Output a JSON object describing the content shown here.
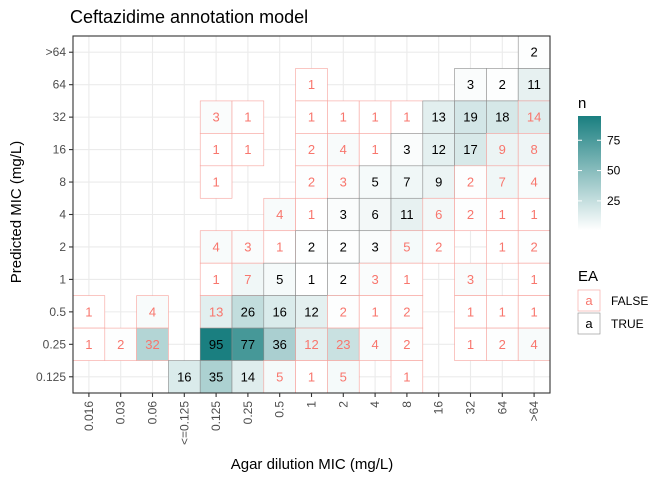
{
  "chart_data": {
    "type": "heatmap",
    "title": "Ceftazidime annotation model",
    "xlabel": "Agar dilution MIC (mg/L)",
    "ylabel": "Predicted MIC (mg/L)",
    "x_categories": [
      "0.016",
      "0.03",
      "0.06",
      "<=0.125",
      "0.125",
      "0.25",
      "0.5",
      "1",
      "2",
      "4",
      "8",
      "16",
      "32",
      "64",
      ">64"
    ],
    "y_categories": [
      "0.125",
      "0.25",
      "0.5",
      "1",
      "2",
      "4",
      "8",
      "16",
      "32",
      "64",
      ">64"
    ],
    "cells": [
      {
        "x": "0.016",
        "y": "0.5",
        "n": 1,
        "ea": false
      },
      {
        "x": "0.016",
        "y": "0.25",
        "n": 1,
        "ea": false
      },
      {
        "x": "0.03",
        "y": "0.25",
        "n": 2,
        "ea": false
      },
      {
        "x": "0.06",
        "y": "0.5",
        "n": 4,
        "ea": false
      },
      {
        "x": "0.06",
        "y": "0.25",
        "n": 32,
        "ea": false
      },
      {
        "x": "<=0.125",
        "y": "0.125",
        "n": 16,
        "ea": true
      },
      {
        "x": "0.125",
        "y": "32",
        "n": 3,
        "ea": false
      },
      {
        "x": "0.125",
        "y": "16",
        "n": 1,
        "ea": false
      },
      {
        "x": "0.125",
        "y": "8",
        "n": 1,
        "ea": false
      },
      {
        "x": "0.125",
        "y": "2",
        "n": 4,
        "ea": false
      },
      {
        "x": "0.125",
        "y": "1",
        "n": 1,
        "ea": false
      },
      {
        "x": "0.125",
        "y": "0.5",
        "n": 13,
        "ea": false
      },
      {
        "x": "0.125",
        "y": "0.25",
        "n": 95,
        "ea": true
      },
      {
        "x": "0.125",
        "y": "0.125",
        "n": 35,
        "ea": true
      },
      {
        "x": "0.25",
        "y": "32",
        "n": 1,
        "ea": false
      },
      {
        "x": "0.25",
        "y": "16",
        "n": 1,
        "ea": false
      },
      {
        "x": "0.25",
        "y": "2",
        "n": 3,
        "ea": false
      },
      {
        "x": "0.25",
        "y": "1",
        "n": 7,
        "ea": false
      },
      {
        "x": "0.25",
        "y": "0.5",
        "n": 26,
        "ea": true
      },
      {
        "x": "0.25",
        "y": "0.25",
        "n": 77,
        "ea": true
      },
      {
        "x": "0.25",
        "y": "0.125",
        "n": 14,
        "ea": true
      },
      {
        "x": "0.5",
        "y": "4",
        "n": 4,
        "ea": false
      },
      {
        "x": "0.5",
        "y": "2",
        "n": 1,
        "ea": false
      },
      {
        "x": "0.5",
        "y": "1",
        "n": 5,
        "ea": true
      },
      {
        "x": "0.5",
        "y": "0.5",
        "n": 16,
        "ea": true
      },
      {
        "x": "0.5",
        "y": "0.25",
        "n": 36,
        "ea": true
      },
      {
        "x": "0.5",
        "y": "0.125",
        "n": 5,
        "ea": false
      },
      {
        "x": "1",
        "y": "64",
        "n": 1,
        "ea": false
      },
      {
        "x": "1",
        "y": "32",
        "n": 1,
        "ea": false
      },
      {
        "x": "1",
        "y": "16",
        "n": 2,
        "ea": false
      },
      {
        "x": "1",
        "y": "8",
        "n": 2,
        "ea": false
      },
      {
        "x": "1",
        "y": "4",
        "n": 1,
        "ea": false
      },
      {
        "x": "1",
        "y": "2",
        "n": 2,
        "ea": true
      },
      {
        "x": "1",
        "y": "1",
        "n": 1,
        "ea": true
      },
      {
        "x": "1",
        "y": "0.5",
        "n": 12,
        "ea": true
      },
      {
        "x": "1",
        "y": "0.25",
        "n": 12,
        "ea": false
      },
      {
        "x": "1",
        "y": "0.125",
        "n": 1,
        "ea": false
      },
      {
        "x": "2",
        "y": "32",
        "n": 1,
        "ea": false
      },
      {
        "x": "2",
        "y": "16",
        "n": 4,
        "ea": false
      },
      {
        "x": "2",
        "y": "8",
        "n": 3,
        "ea": false
      },
      {
        "x": "2",
        "y": "4",
        "n": 3,
        "ea": true
      },
      {
        "x": "2",
        "y": "2",
        "n": 2,
        "ea": true
      },
      {
        "x": "2",
        "y": "1",
        "n": 2,
        "ea": true
      },
      {
        "x": "2",
        "y": "0.5",
        "n": 2,
        "ea": false
      },
      {
        "x": "2",
        "y": "0.25",
        "n": 23,
        "ea": false
      },
      {
        "x": "2",
        "y": "0.125",
        "n": 5,
        "ea": false
      },
      {
        "x": "4",
        "y": "32",
        "n": 1,
        "ea": false
      },
      {
        "x": "4",
        "y": "16",
        "n": 1,
        "ea": false
      },
      {
        "x": "4",
        "y": "8",
        "n": 5,
        "ea": true
      },
      {
        "x": "4",
        "y": "4",
        "n": 6,
        "ea": true
      },
      {
        "x": "4",
        "y": "2",
        "n": 3,
        "ea": true
      },
      {
        "x": "4",
        "y": "1",
        "n": 3,
        "ea": false
      },
      {
        "x": "4",
        "y": "0.5",
        "n": 1,
        "ea": false
      },
      {
        "x": "4",
        "y": "0.25",
        "n": 4,
        "ea": false
      },
      {
        "x": "8",
        "y": "32",
        "n": 1,
        "ea": false
      },
      {
        "x": "8",
        "y": "16",
        "n": 3,
        "ea": true
      },
      {
        "x": "8",
        "y": "8",
        "n": 7,
        "ea": true
      },
      {
        "x": "8",
        "y": "4",
        "n": 11,
        "ea": true
      },
      {
        "x": "8",
        "y": "2",
        "n": 5,
        "ea": false
      },
      {
        "x": "8",
        "y": "1",
        "n": 1,
        "ea": false
      },
      {
        "x": "8",
        "y": "0.5",
        "n": 2,
        "ea": false
      },
      {
        "x": "8",
        "y": "0.25",
        "n": 2,
        "ea": false
      },
      {
        "x": "8",
        "y": "0.125",
        "n": 1,
        "ea": false
      },
      {
        "x": "16",
        "y": "32",
        "n": 13,
        "ea": true
      },
      {
        "x": "16",
        "y": "16",
        "n": 12,
        "ea": true
      },
      {
        "x": "16",
        "y": "8",
        "n": 9,
        "ea": true
      },
      {
        "x": "16",
        "y": "4",
        "n": 6,
        "ea": false
      },
      {
        "x": "16",
        "y": "2",
        "n": 2,
        "ea": false
      },
      {
        "x": "32",
        "y": "64",
        "n": 3,
        "ea": true
      },
      {
        "x": "32",
        "y": "32",
        "n": 19,
        "ea": true
      },
      {
        "x": "32",
        "y": "16",
        "n": 17,
        "ea": true
      },
      {
        "x": "32",
        "y": "8",
        "n": 2,
        "ea": false
      },
      {
        "x": "32",
        "y": "4",
        "n": 2,
        "ea": false
      },
      {
        "x": "32",
        "y": "1",
        "n": 3,
        "ea": false
      },
      {
        "x": "32",
        "y": "0.5",
        "n": 1,
        "ea": false
      },
      {
        "x": "32",
        "y": "0.25",
        "n": 1,
        "ea": false
      },
      {
        "x": "64",
        "y": "64",
        "n": 2,
        "ea": true
      },
      {
        "x": "64",
        "y": "32",
        "n": 18,
        "ea": true
      },
      {
        "x": "64",
        "y": "16",
        "n": 9,
        "ea": false
      },
      {
        "x": "64",
        "y": "8",
        "n": 7,
        "ea": false
      },
      {
        "x": "64",
        "y": "4",
        "n": 1,
        "ea": false
      },
      {
        "x": "64",
        "y": "2",
        "n": 1,
        "ea": false
      },
      {
        "x": "64",
        "y": "0.5",
        "n": 1,
        "ea": false
      },
      {
        "x": "64",
        "y": "0.25",
        "n": 2,
        "ea": false
      },
      {
        "x": ">64",
        "y": ">64",
        "n": 2,
        "ea": true
      },
      {
        "x": ">64",
        "y": "64",
        "n": 11,
        "ea": true
      },
      {
        "x": ">64",
        "y": "32",
        "n": 14,
        "ea": false
      },
      {
        "x": ">64",
        "y": "16",
        "n": 8,
        "ea": false
      },
      {
        "x": ">64",
        "y": "8",
        "n": 4,
        "ea": false
      },
      {
        "x": ">64",
        "y": "4",
        "n": 1,
        "ea": false
      },
      {
        "x": ">64",
        "y": "2",
        "n": 2,
        "ea": false
      },
      {
        "x": ">64",
        "y": "1",
        "n": 1,
        "ea": false
      },
      {
        "x": ">64",
        "y": "0.5",
        "n": 1,
        "ea": false
      },
      {
        "x": ">64",
        "y": "0.25",
        "n": 4,
        "ea": false
      }
    ],
    "fill_scale": {
      "low": "#ffffff",
      "high": "#1a7f80",
      "min": 1,
      "max": 95
    },
    "legend_fill": {
      "title": "n",
      "breaks": [
        25,
        50,
        75
      ]
    },
    "legend_ea": {
      "title": "EA",
      "key_glyph": "a",
      "items": [
        {
          "label": "FALSE",
          "color": "#f8766d"
        },
        {
          "label": "TRUE",
          "color": "#000000"
        }
      ]
    },
    "colors": {
      "false_text": "#f8766d",
      "true_text": "#000000"
    },
    "grid": true,
    "legend_position": "right"
  }
}
